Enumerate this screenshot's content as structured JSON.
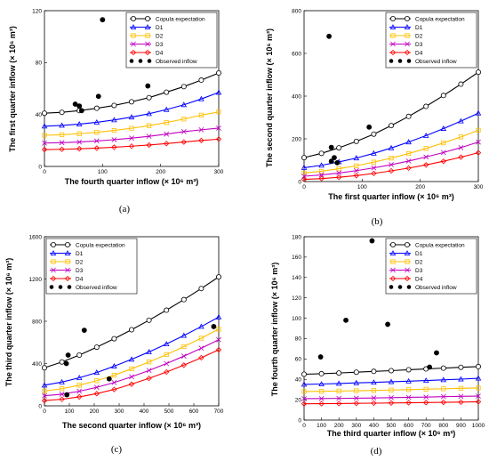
{
  "legend": [
    "Copula expectation",
    "D1",
    "D2",
    "D3",
    "D4",
    "Observed inflow"
  ],
  "colors": {
    "Copula expectation": "#000000",
    "D1": "#0000ff",
    "D2": "#ffbf00",
    "D3": "#c000c0",
    "D4": "#ff0000",
    "Observed inflow": "#000000"
  },
  "chart_data": [
    {
      "type": "line",
      "panel_label": "(a)",
      "xlabel": "The fourth quarter inflow (× 10⁶ m³)",
      "ylabel": "The first quarter inflow (× 10⁶ m³)",
      "xlim": [
        0,
        300
      ],
      "ylim": [
        0,
        120
      ],
      "xticks": [
        0,
        100,
        200,
        300
      ],
      "yticks": [
        0,
        40,
        80,
        120
      ],
      "curve_x": [
        0,
        30,
        60,
        90,
        120,
        150,
        180,
        210,
        240,
        270,
        300
      ],
      "series": [
        {
          "name": "Copula expectation",
          "marker": "circle",
          "values": [
            41,
            41.7,
            43,
            44.8,
            47,
            49.8,
            53,
            57.2,
            61.5,
            66.5,
            72
          ]
        },
        {
          "name": "D1",
          "marker": "triangle",
          "values": [
            31,
            31.6,
            32.6,
            34,
            35.8,
            38,
            40.6,
            43.8,
            47.5,
            52,
            57
          ]
        },
        {
          "name": "D2",
          "marker": "square",
          "values": [
            24,
            24.4,
            25.2,
            26.3,
            27.7,
            29.4,
            31.4,
            33.8,
            36.5,
            39.5,
            42
          ]
        },
        {
          "name": "D3",
          "marker": "x",
          "values": [
            18,
            18.3,
            18.8,
            19.6,
            20.6,
            21.8,
            23.2,
            24.9,
            26.8,
            28.2,
            29.5
          ]
        },
        {
          "name": "D4",
          "marker": "diamond",
          "values": [
            13,
            13.2,
            13.6,
            14.1,
            14.8,
            15.6,
            16.5,
            17.6,
            18.8,
            20,
            21
          ]
        }
      ],
      "observed": {
        "name": "Observed inflow",
        "points": [
          [
            53,
            48
          ],
          [
            60,
            46.5
          ],
          [
            64,
            43
          ],
          [
            93,
            54
          ],
          [
            100,
            113
          ],
          [
            178,
            62
          ]
        ]
      }
    },
    {
      "type": "line",
      "panel_label": "(b)",
      "xlabel": "The first quarter inflow (× 10⁶ m³)",
      "ylabel": "The second quarter inflow (× 10⁶ m³)",
      "xlim": [
        0,
        300
      ],
      "ylim": [
        0,
        800
      ],
      "xticks": [
        0,
        100,
        200,
        300
      ],
      "yticks": [
        0,
        200,
        400,
        600,
        800
      ],
      "curve_x": [
        0,
        30,
        60,
        90,
        120,
        150,
        180,
        210,
        240,
        270,
        300
      ],
      "series": [
        {
          "name": "Copula expectation",
          "marker": "circle",
          "values": [
            112,
            132,
            158,
            188,
            222,
            262,
            305,
            352,
            403,
            456,
            512
          ]
        },
        {
          "name": "D1",
          "marker": "triangle",
          "values": [
            65,
            76,
            92,
            110,
            132,
            157,
            185,
            215,
            248,
            283,
            320
          ]
        },
        {
          "name": "D2",
          "marker": "square",
          "values": [
            40,
            48,
            60,
            74,
            91,
            110,
            131,
            155,
            181,
            209,
            240
          ]
        },
        {
          "name": "D3",
          "marker": "x",
          "values": [
            25,
            31,
            40,
            51,
            64,
            79,
            96,
            115,
            136,
            159,
            185
          ]
        },
        {
          "name": "D4",
          "marker": "diamond",
          "values": [
            10,
            14,
            20,
            28,
            38,
            50,
            63,
            78,
            95,
            114,
            135
          ]
        }
      ],
      "observed": {
        "name": "Observed inflow",
        "points": [
          [
            43,
            680
          ],
          [
            47,
            160
          ],
          [
            47,
            95
          ],
          [
            52,
            112
          ],
          [
            57,
            88
          ],
          [
            112,
            255
          ]
        ]
      }
    },
    {
      "type": "line",
      "panel_label": "(c)",
      "xlabel": "The second quarter inflow (× 10⁶ m³)",
      "ylabel": "The third quarter inflow (× 10⁶ m³)",
      "xlim": [
        0,
        700
      ],
      "ylim": [
        0,
        1600
      ],
      "xticks": [
        0,
        100,
        200,
        300,
        400,
        500,
        600,
        700
      ],
      "yticks": [
        0,
        400,
        800,
        1200,
        1600
      ],
      "curve_x": [
        0,
        70,
        140,
        210,
        280,
        350,
        420,
        490,
        560,
        630,
        700
      ],
      "series": [
        {
          "name": "Copula expectation",
          "marker": "circle",
          "values": [
            360,
            415,
            480,
            555,
            635,
            720,
            810,
            905,
            1005,
            1110,
            1220
          ]
        },
        {
          "name": "D1",
          "marker": "triangle",
          "values": [
            195,
            225,
            265,
            315,
            375,
            440,
            510,
            585,
            665,
            750,
            840
          ]
        },
        {
          "name": "D2",
          "marker": "square",
          "values": [
            140,
            162,
            195,
            238,
            290,
            350,
            415,
            485,
            560,
            640,
            725
          ]
        },
        {
          "name": "D3",
          "marker": "x",
          "values": [
            95,
            110,
            138,
            175,
            220,
            275,
            335,
            400,
            470,
            545,
            625
          ]
        },
        {
          "name": "D4",
          "marker": "diamond",
          "values": [
            50,
            62,
            85,
            115,
            155,
            205,
            260,
            320,
            385,
            455,
            530
          ]
        }
      ],
      "observed": {
        "name": "Observed inflow",
        "points": [
          [
            88,
            400
          ],
          [
            95,
            480
          ],
          [
            160,
            715
          ],
          [
            260,
            255
          ],
          [
            90,
            105
          ],
          [
            680,
            750
          ]
        ]
      }
    },
    {
      "type": "line",
      "panel_label": "(d)",
      "xlabel": "The third quarter inflow (× 10⁶ m³)",
      "ylabel": "The fourth quarter inflow (× 10⁶ m³)",
      "xlim": [
        0,
        1000
      ],
      "ylim": [
        0,
        180
      ],
      "xticks": [
        0,
        100,
        200,
        300,
        400,
        500,
        600,
        700,
        800,
        900,
        1000
      ],
      "yticks": [
        0,
        20,
        40,
        60,
        80,
        100,
        120,
        140,
        160,
        180
      ],
      "curve_x": [
        0,
        100,
        200,
        300,
        400,
        500,
        600,
        700,
        800,
        900,
        1000
      ],
      "series": [
        {
          "name": "Copula expectation",
          "marker": "circle",
          "values": [
            45,
            45.5,
            46.2,
            47,
            47.8,
            48.5,
            49.4,
            50.2,
            51,
            51.8,
            52.5
          ]
        },
        {
          "name": "D1",
          "marker": "triangle",
          "values": [
            35,
            35.4,
            35.9,
            36.5,
            37,
            37.6,
            38.2,
            38.8,
            39.5,
            40.2,
            41
          ]
        },
        {
          "name": "D2",
          "marker": "square",
          "values": [
            28,
            28.2,
            28.5,
            28.8,
            29.1,
            29.5,
            29.9,
            30.3,
            30.7,
            31.2,
            31.5
          ]
        },
        {
          "name": "D3",
          "marker": "x",
          "values": [
            21,
            21.1,
            21.3,
            21.5,
            21.7,
            22,
            22.3,
            22.6,
            23,
            23.3,
            23.5
          ]
        },
        {
          "name": "D4",
          "marker": "diamond",
          "values": [
            16,
            16.1,
            16.2,
            16.4,
            16.6,
            16.8,
            17,
            17.2,
            17.4,
            17.6,
            18
          ]
        }
      ],
      "observed": {
        "name": "Observed inflow",
        "points": [
          [
            95,
            62
          ],
          [
            240,
            98
          ],
          [
            390,
            176
          ],
          [
            480,
            94
          ],
          [
            720,
            52
          ],
          [
            760,
            66
          ]
        ]
      }
    }
  ]
}
